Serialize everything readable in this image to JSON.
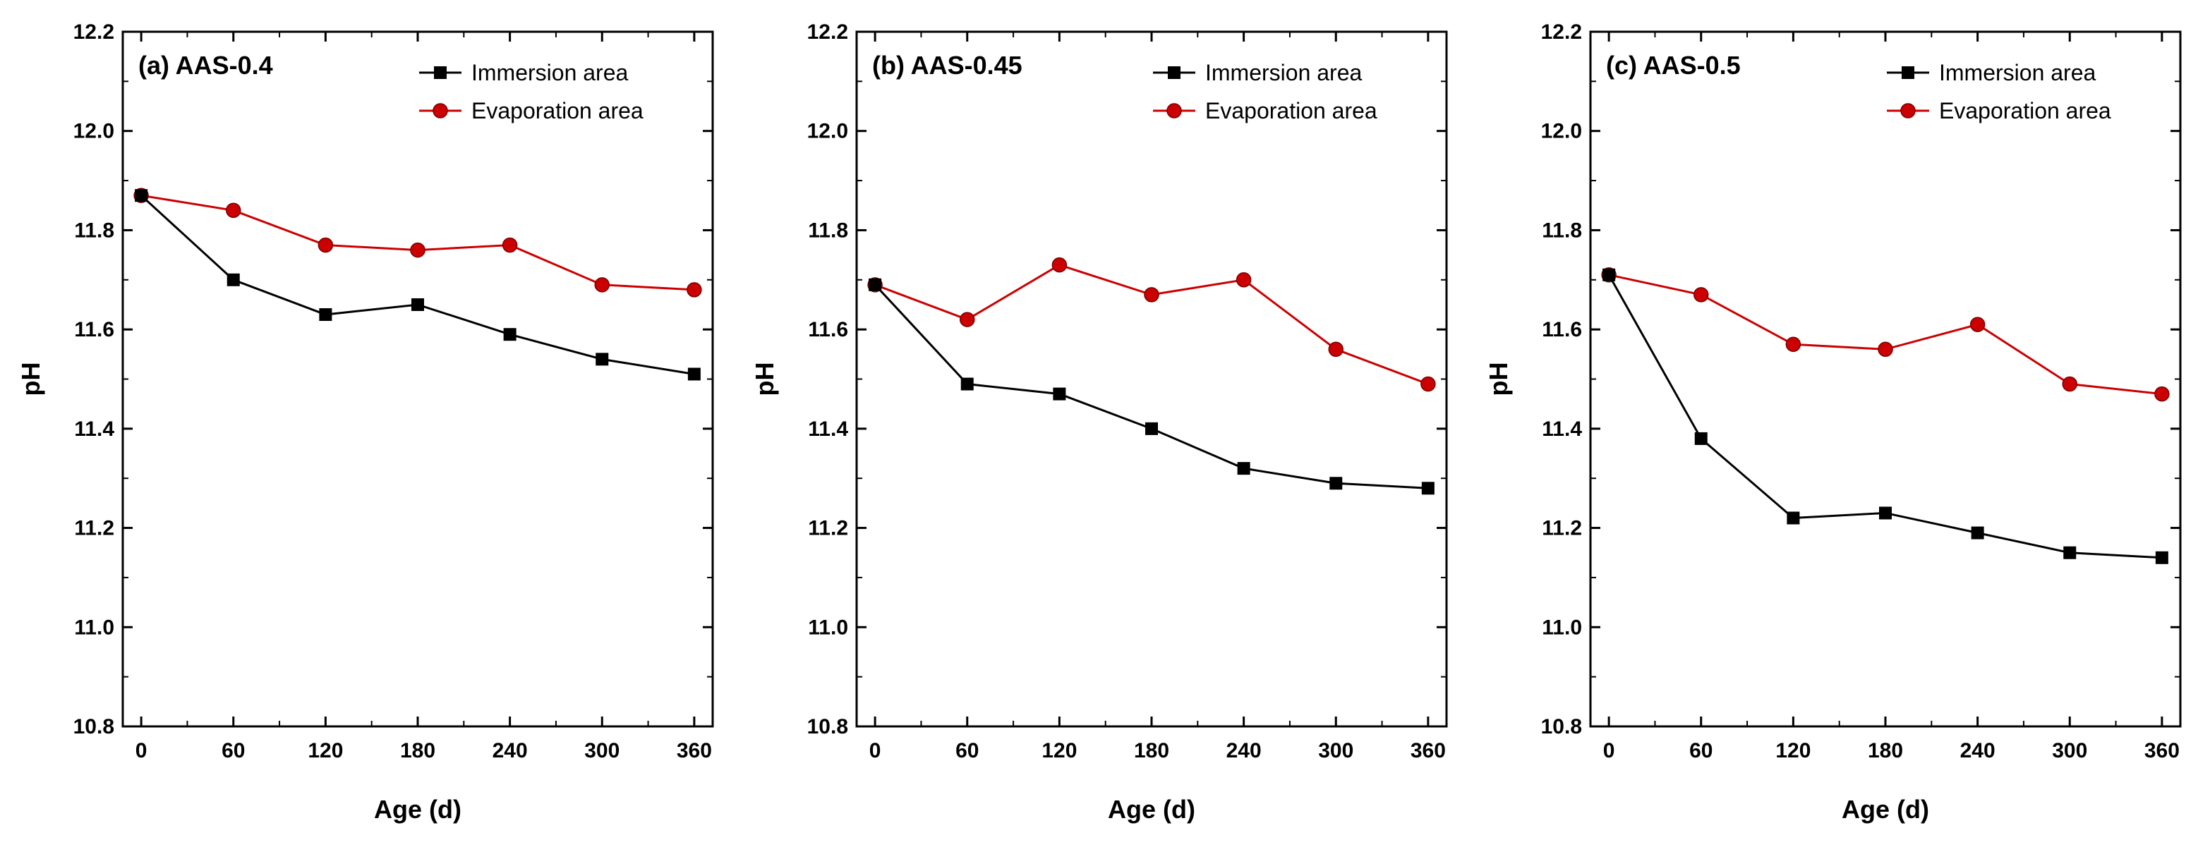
{
  "chart_data": [
    {
      "type": "line",
      "title": "(a) AAS-0.4",
      "xlabel": "Age (d)",
      "ylabel": "pH",
      "x": [
        0,
        60,
        120,
        180,
        240,
        300,
        360
      ],
      "x_ticks": [
        "0",
        "60",
        "120",
        "180",
        "240",
        "300",
        "360"
      ],
      "xlim": [
        -12,
        372
      ],
      "ylim": [
        10.8,
        12.2
      ],
      "y_ticks": [
        "10.8",
        "11.0",
        "11.2",
        "11.4",
        "11.6",
        "11.8",
        "12.0",
        "12.2"
      ],
      "grid": false,
      "legend": "top-right",
      "series": [
        {
          "name": "Immersion area",
          "color": "#000000",
          "marker": "square",
          "values": [
            11.87,
            11.7,
            11.63,
            11.65,
            11.59,
            11.54,
            11.51
          ]
        },
        {
          "name": "Evaporation area",
          "color": "#cc0000",
          "marker": "circle",
          "values": [
            11.87,
            11.84,
            11.77,
            11.76,
            11.77,
            11.69,
            11.68
          ]
        }
      ]
    },
    {
      "type": "line",
      "title": "(b) AAS-0.45",
      "xlabel": "Age (d)",
      "ylabel": "pH",
      "x": [
        0,
        60,
        120,
        180,
        240,
        300,
        360
      ],
      "x_ticks": [
        "0",
        "60",
        "120",
        "180",
        "240",
        "300",
        "360"
      ],
      "xlim": [
        -12,
        372
      ],
      "ylim": [
        10.8,
        12.2
      ],
      "y_ticks": [
        "10.8",
        "11.0",
        "11.2",
        "11.4",
        "11.6",
        "11.8",
        "12.0",
        "12.2"
      ],
      "grid": false,
      "legend": "top-right",
      "series": [
        {
          "name": "Immersion area",
          "color": "#000000",
          "marker": "square",
          "values": [
            11.69,
            11.49,
            11.47,
            11.4,
            11.32,
            11.29,
            11.28
          ]
        },
        {
          "name": "Evaporation area",
          "color": "#cc0000",
          "marker": "circle",
          "values": [
            11.69,
            11.62,
            11.73,
            11.67,
            11.7,
            11.56,
            11.49
          ]
        }
      ]
    },
    {
      "type": "line",
      "title": "(c) AAS-0.5",
      "xlabel": "Age (d)",
      "ylabel": "pH",
      "x": [
        0,
        60,
        120,
        180,
        240,
        300,
        360
      ],
      "x_ticks": [
        "0",
        "60",
        "120",
        "180",
        "240",
        "300",
        "360"
      ],
      "xlim": [
        -12,
        372
      ],
      "ylim": [
        10.8,
        12.2
      ],
      "y_ticks": [
        "10.8",
        "11.0",
        "11.2",
        "11.4",
        "11.6",
        "11.8",
        "12.0",
        "12.2"
      ],
      "grid": false,
      "legend": "top-right",
      "series": [
        {
          "name": "Immersion area",
          "color": "#000000",
          "marker": "square",
          "values": [
            11.71,
            11.38,
            11.22,
            11.23,
            11.19,
            11.15,
            11.14
          ]
        },
        {
          "name": "Evaporation area",
          "color": "#cc0000",
          "marker": "circle",
          "values": [
            11.71,
            11.67,
            11.57,
            11.56,
            11.61,
            11.49,
            11.47
          ]
        }
      ]
    }
  ]
}
